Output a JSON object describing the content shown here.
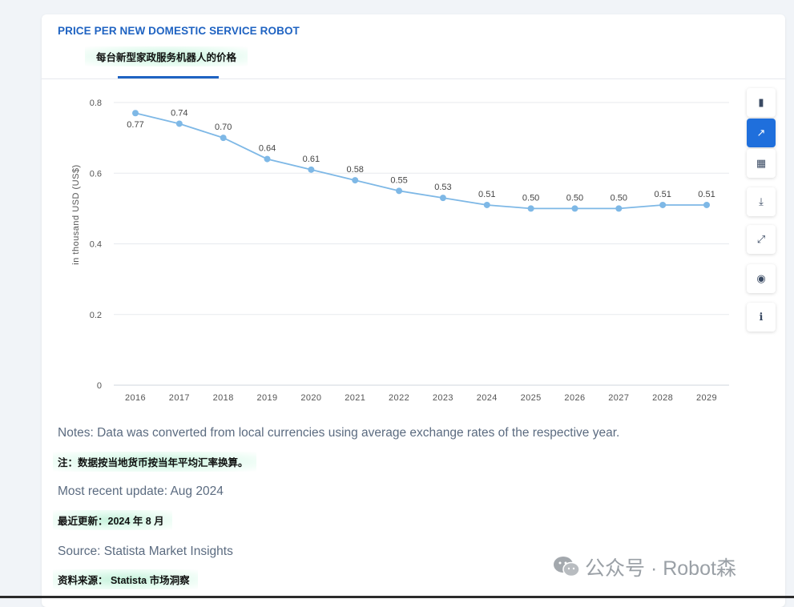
{
  "card": {
    "title": "PRICE PER NEW DOMESTIC SERVICE ROBOT",
    "subtitle_zh": "每台新型家政服务机器人的价格"
  },
  "toolbar": {
    "buttons": [
      {
        "name": "bar-chart-icon",
        "glyph": "▮",
        "active": false
      },
      {
        "name": "line-chart-icon",
        "glyph": "↗",
        "active": true
      },
      {
        "name": "table-icon",
        "glyph": "▦",
        "active": false
      },
      {
        "name": "download-icon",
        "glyph": "⤓",
        "active": false
      },
      {
        "name": "fullscreen-icon",
        "glyph": "⤢",
        "active": false
      },
      {
        "name": "hide-icon",
        "glyph": "◉",
        "active": false
      },
      {
        "name": "info-icon",
        "glyph": "ℹ",
        "active": false
      }
    ]
  },
  "chart_data": {
    "type": "line",
    "title": "PRICE PER NEW DOMESTIC SERVICE ROBOT",
    "xlabel": "",
    "ylabel": "in thousand USD (US$)",
    "x": [
      "2016",
      "2017",
      "2018",
      "2019",
      "2020",
      "2021",
      "2022",
      "2023",
      "2024",
      "2025",
      "2026",
      "2027",
      "2028",
      "2029"
    ],
    "series": [
      {
        "values": [
          0.77,
          0.74,
          0.7,
          0.64,
          0.61,
          0.58,
          0.55,
          0.53,
          0.51,
          0.5,
          0.5,
          0.5,
          0.51,
          0.51
        ]
      }
    ],
    "value_labels": [
      "0.77",
      "0.74",
      "0.70",
      "0.64",
      "0.61",
      "0.58",
      "0.55",
      "0.53",
      "0.51",
      "0.50",
      "0.50",
      "0.50",
      "0.51",
      "0.51"
    ],
    "ylim": [
      0,
      0.8
    ],
    "yticks": [
      "0",
      "0.2",
      "0.4",
      "0.6",
      "0.8"
    ],
    "grid": true,
    "line_color": "#7eb8e6"
  },
  "notes": {
    "notes_en": "Notes: Data was converted from local currencies using average exchange rates of the respective year.",
    "notes_zh": "注：数据按当地货币按当年平均汇率换算。",
    "update_en": "Most recent update: Aug 2024",
    "update_zh": "最近更新：2024 年 8 月",
    "source_en": "Source: Statista Market Insights",
    "source_zh": "资料来源： Statista 市场洞察"
  },
  "watermark": {
    "text": "公众号 · Robot森"
  }
}
